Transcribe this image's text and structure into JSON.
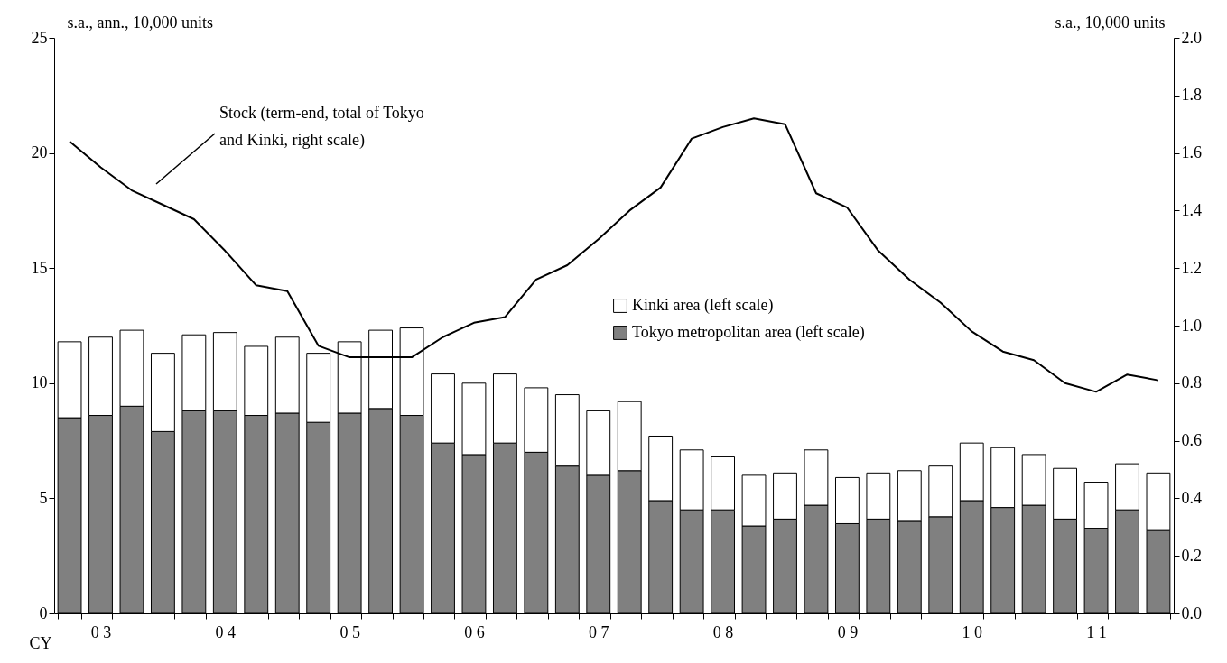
{
  "chart_data": {
    "type": "bar",
    "stacked": true,
    "categories": [
      null,
      "0 3",
      null,
      null,
      null,
      "0 4",
      null,
      null,
      null,
      "0 5",
      null,
      null,
      null,
      "0 6",
      null,
      null,
      null,
      "0 7",
      null,
      null,
      null,
      "0 8",
      null,
      null,
      null,
      "0 9",
      null,
      null,
      null,
      "1 0",
      null,
      null,
      null,
      "1 1",
      null,
      null
    ],
    "xlabel": "CY",
    "ylabel": "s.a., ann., 10,000 units",
    "y2label": "s.a., 10,000 units",
    "series": [
      {
        "name": "Tokyo metropolitan area (left scale)",
        "color": "#808080",
        "values": [
          8.5,
          8.6,
          9.0,
          7.9,
          8.8,
          8.8,
          8.6,
          8.7,
          8.3,
          8.7,
          8.9,
          8.6,
          7.4,
          6.9,
          7.4,
          7.0,
          6.4,
          6.0,
          6.2,
          4.9,
          4.5,
          4.5,
          3.8,
          4.1,
          4.7,
          3.9,
          4.1,
          4.0,
          4.2,
          4.9,
          4.6,
          4.7,
          4.1,
          3.7,
          4.5,
          3.6
        ]
      },
      {
        "name": "Kinki area (left scale)",
        "color": "#ffffff",
        "values": [
          3.3,
          3.4,
          3.3,
          3.4,
          3.3,
          3.4,
          3.0,
          3.3,
          3.0,
          3.1,
          3.4,
          3.8,
          3.0,
          3.1,
          3.0,
          2.8,
          3.1,
          2.8,
          3.0,
          2.8,
          2.6,
          2.3,
          2.2,
          2.0,
          2.4,
          2.0,
          2.0,
          2.2,
          2.2,
          2.5,
          2.6,
          2.2,
          2.2,
          2.0,
          2.0,
          2.5
        ]
      },
      {
        "type": "line",
        "axis": "y2",
        "color": "#000000",
        "values": [
          1.64,
          1.55,
          1.47,
          1.42,
          1.37,
          1.26,
          1.14,
          1.12,
          0.93,
          0.89,
          0.89,
          0.89,
          0.96,
          1.01,
          1.03,
          1.16,
          1.21,
          1.3,
          1.4,
          1.48,
          1.65,
          1.69,
          1.72,
          1.7,
          1.46,
          1.41,
          1.26,
          1.16,
          1.08,
          0.98,
          0.91,
          0.88,
          0.8,
          0.77,
          0.83,
          0.81
        ]
      }
    ],
    "ylim": [
      0,
      25
    ],
    "yticks": [
      0,
      5,
      10,
      15,
      20,
      25
    ],
    "y2lim": [
      0,
      2
    ],
    "y2ticks": [
      {
        "value": 0,
        "label": "0.0"
      },
      0.2,
      0.4,
      0.6,
      0.8,
      {
        "value": 1,
        "label": "1.0"
      },
      1.2,
      1.4,
      1.6,
      1.8,
      {
        "value": 2,
        "label": "2.0"
      }
    ],
    "annotations": [
      "Stock (term-end, total of Tokyo and Kinki, right scale)"
    ],
    "legend": "center",
    "grid": false
  }
}
